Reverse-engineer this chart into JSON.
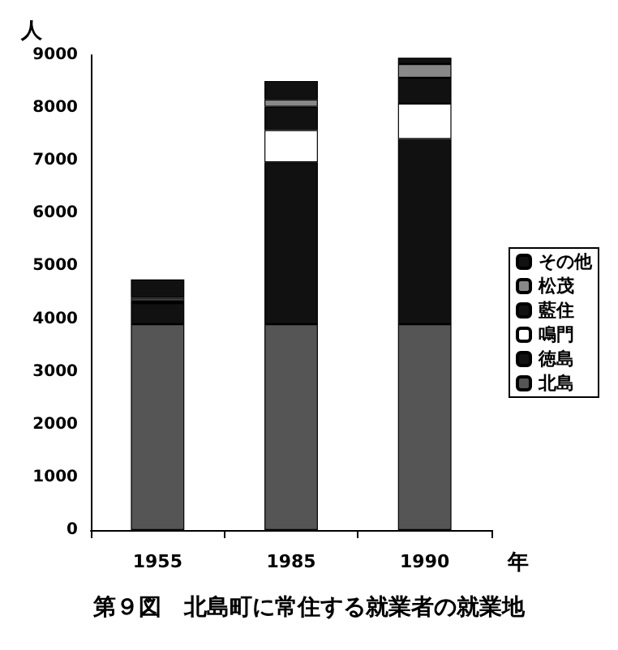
{
  "chart_data": {
    "type": "bar",
    "title": "第９図　北島町に常住する就業者の就業地",
    "xlabel": "年",
    "ylabel": "人",
    "categories": [
      "1955",
      "1985",
      "1990"
    ],
    "stacked": true,
    "ylim": [
      0,
      9000
    ],
    "yticks": [
      0,
      1000,
      2000,
      3000,
      4000,
      5000,
      6000,
      7000,
      8000,
      9000
    ],
    "grid": false,
    "legend": "right",
    "series": [
      {
        "name": "北島",
        "color": "#555555",
        "values": [
          3900,
          3900,
          3900
        ]
      },
      {
        "name": "徳島",
        "color": "#111111",
        "values": [
          400,
          3070,
          3510
        ]
      },
      {
        "name": "鳴門",
        "color": "#ffffff",
        "values": [
          30,
          610,
          670
        ]
      },
      {
        "name": "藍住",
        "color": "#111111",
        "values": [
          20,
          440,
          490
        ]
      },
      {
        "name": "松茂",
        "color": "#888888",
        "values": [
          50,
          140,
          260
        ]
      },
      {
        "name": "その他",
        "color": "#111111",
        "values": [
          350,
          350,
          120
        ]
      }
    ]
  }
}
